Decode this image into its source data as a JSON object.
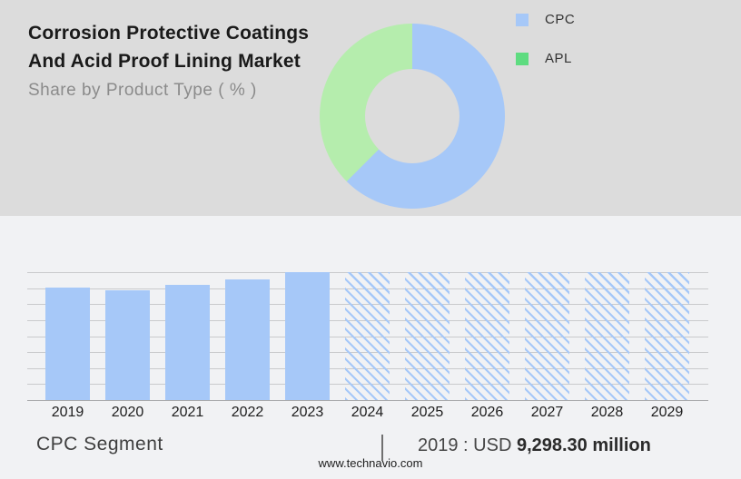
{
  "header": {
    "title_line1": "Corrosion Protective Coatings",
    "title_line2": "And Acid Proof Lining Market",
    "subtitle": "Share by Product Type ( % )"
  },
  "legend": {
    "items": [
      {
        "label": "CPC",
        "color": "#a6c8f8"
      },
      {
        "label": "APL",
        "color": "#5edc80"
      }
    ]
  },
  "stat": {
    "segment_label": "CPC Segment",
    "separator": "|",
    "prefix": "2019 : USD ",
    "value": "9,298.30 million"
  },
  "footer": {
    "url": "www.technavio.com"
  },
  "colors": {
    "top_background": "#dcdcdc",
    "bottom_background": "#f1f2f4",
    "bar_blue": "#a6c8f8",
    "donut_blue": "#a6c8f8",
    "donut_green": "#b5edad",
    "legend_green": "#5edc80",
    "gridline": "#c9cacc"
  },
  "chart_data": [
    {
      "type": "pie",
      "subtype": "donut",
      "title": "Share by Product Type ( % )",
      "legend_position": "right",
      "start_angle_deg": 0,
      "segments": [
        {
          "label": "CPC",
          "pct": 62.5,
          "color": "#a6c8f8"
        },
        {
          "label": "APL",
          "pct": 37.5,
          "color": "#b5edad"
        }
      ]
    },
    {
      "type": "bar",
      "categories": [
        "2019",
        "2020",
        "2021",
        "2022",
        "2023",
        "2024",
        "2025",
        "2026",
        "2027",
        "2028",
        "2029"
      ],
      "bar_heights_pct_of_max": [
        87.6,
        85.8,
        90.1,
        94.5,
        100,
        100,
        100,
        100,
        100,
        100,
        100
      ],
      "forecast_categories": [
        "2024",
        "2025",
        "2026",
        "2027",
        "2028",
        "2029"
      ],
      "labeled_point": {
        "category": "2019",
        "label": "USD 9,298.30 million",
        "value_usd_million": 9298.3
      },
      "bar_color": "#a6c8f8",
      "forecast_style": "diagonal-hatch",
      "grid": true,
      "gridline_count": 9,
      "xlabel": "",
      "ylabel": ""
    }
  ]
}
